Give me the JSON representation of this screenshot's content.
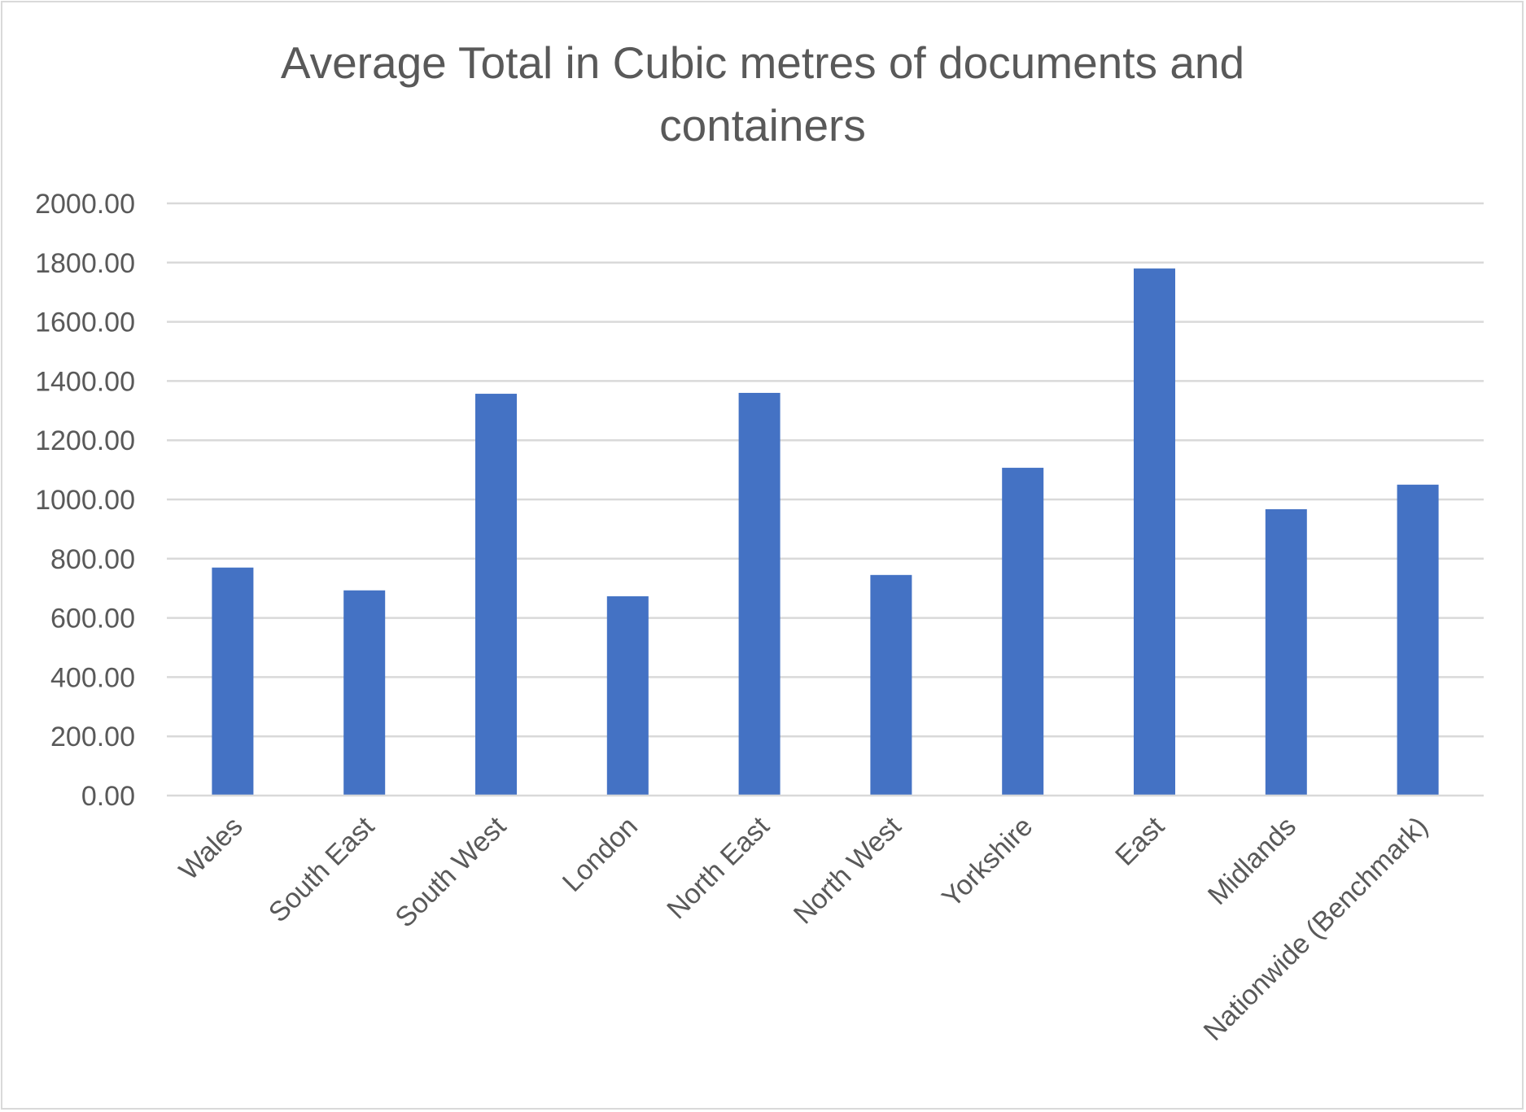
{
  "chart_data": {
    "type": "bar",
    "title": "Average Total in Cubic metres of documents and containers",
    "title_lines": [
      "Average Total in Cubic metres of documents and",
      "containers"
    ],
    "xlabel": "",
    "ylabel": "",
    "categories": [
      "Wales",
      "South East",
      "South West",
      "London",
      "North East",
      "North West",
      "Yorkshire",
      "East",
      "Midlands",
      "Nationwide (Benchmark)"
    ],
    "values": [
      770,
      693,
      1357,
      673,
      1360,
      745,
      1107,
      1780,
      967,
      1050
    ],
    "ylim": [
      0,
      2000
    ],
    "y_ticks": [
      0,
      200,
      400,
      600,
      800,
      1000,
      1200,
      1400,
      1600,
      1800,
      2000
    ],
    "y_tick_labels": [
      "0.00",
      "200.00",
      "400.00",
      "600.00",
      "800.00",
      "1000.00",
      "1200.00",
      "1400.00",
      "1600.00",
      "1800.00",
      "2000.00"
    ],
    "grid": true,
    "legend": "none",
    "bar_color": "#4472c4"
  }
}
